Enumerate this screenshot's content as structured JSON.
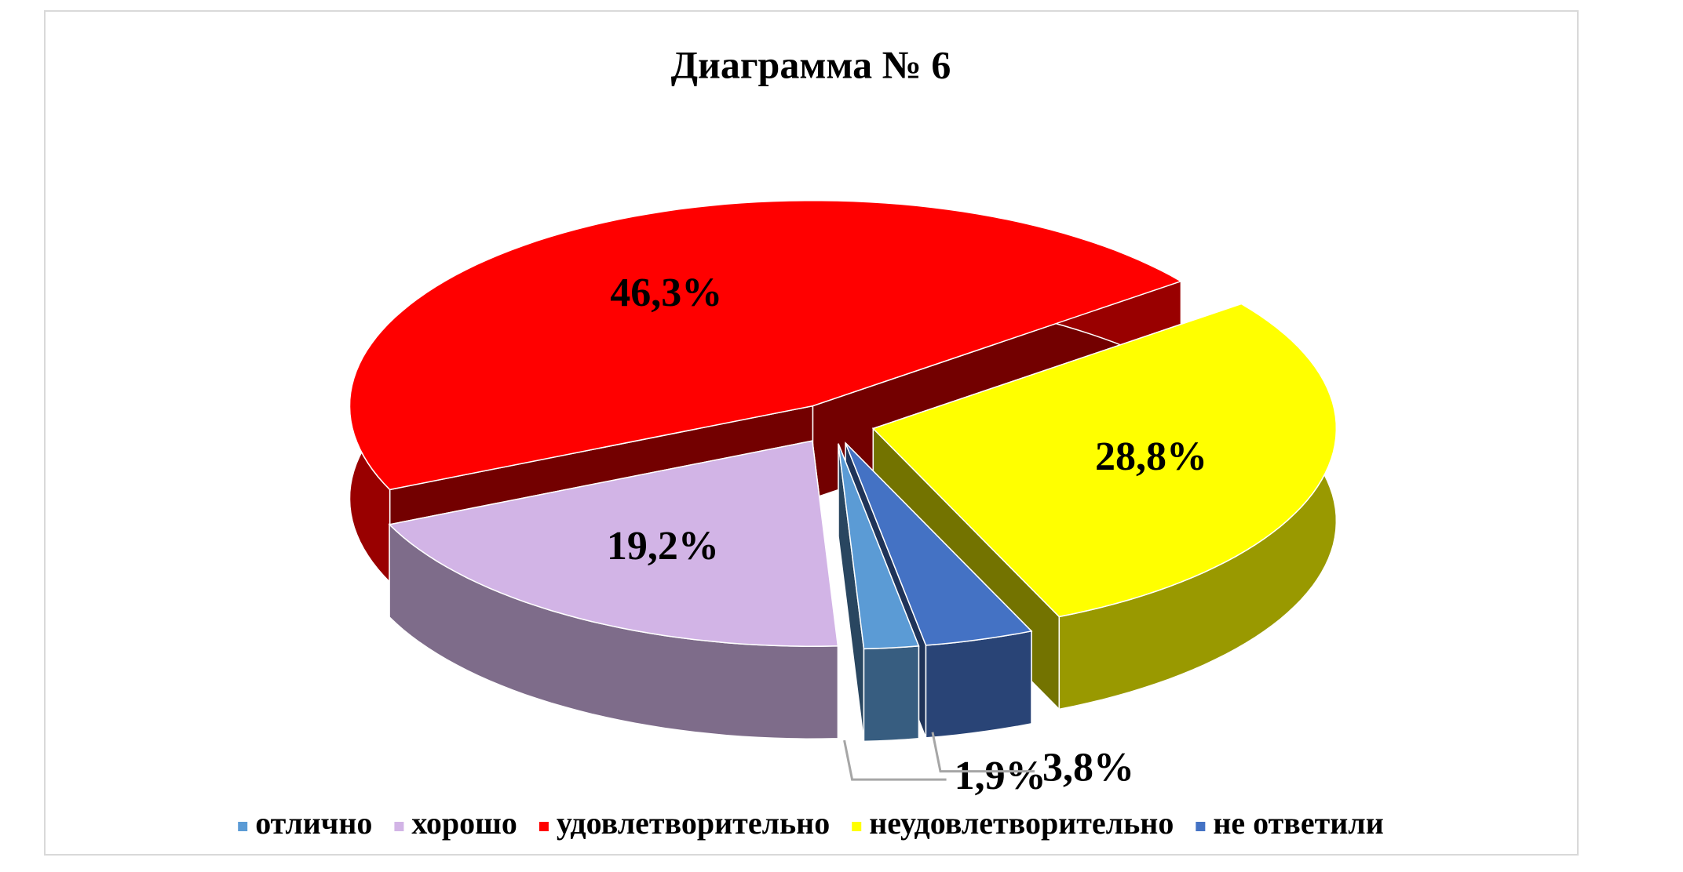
{
  "chart_data": {
    "type": "pie3d",
    "title": "Диаграмма № 6",
    "categories": [
      "отлично",
      "хорошо",
      "удовлетворительно",
      "неудовлетворительно",
      "не ответили"
    ],
    "values": [
      1.9,
      19.2,
      46.3,
      28.8,
      3.8
    ],
    "value_labels": [
      "1,9%",
      "19,2%",
      "46,3%",
      "28,8%",
      "3,8%"
    ],
    "colors": [
      "#5b9bd5",
      "#d2b4e6",
      "#ff0000",
      "#ffff00",
      "#4472c4"
    ],
    "legend": "bottom"
  }
}
